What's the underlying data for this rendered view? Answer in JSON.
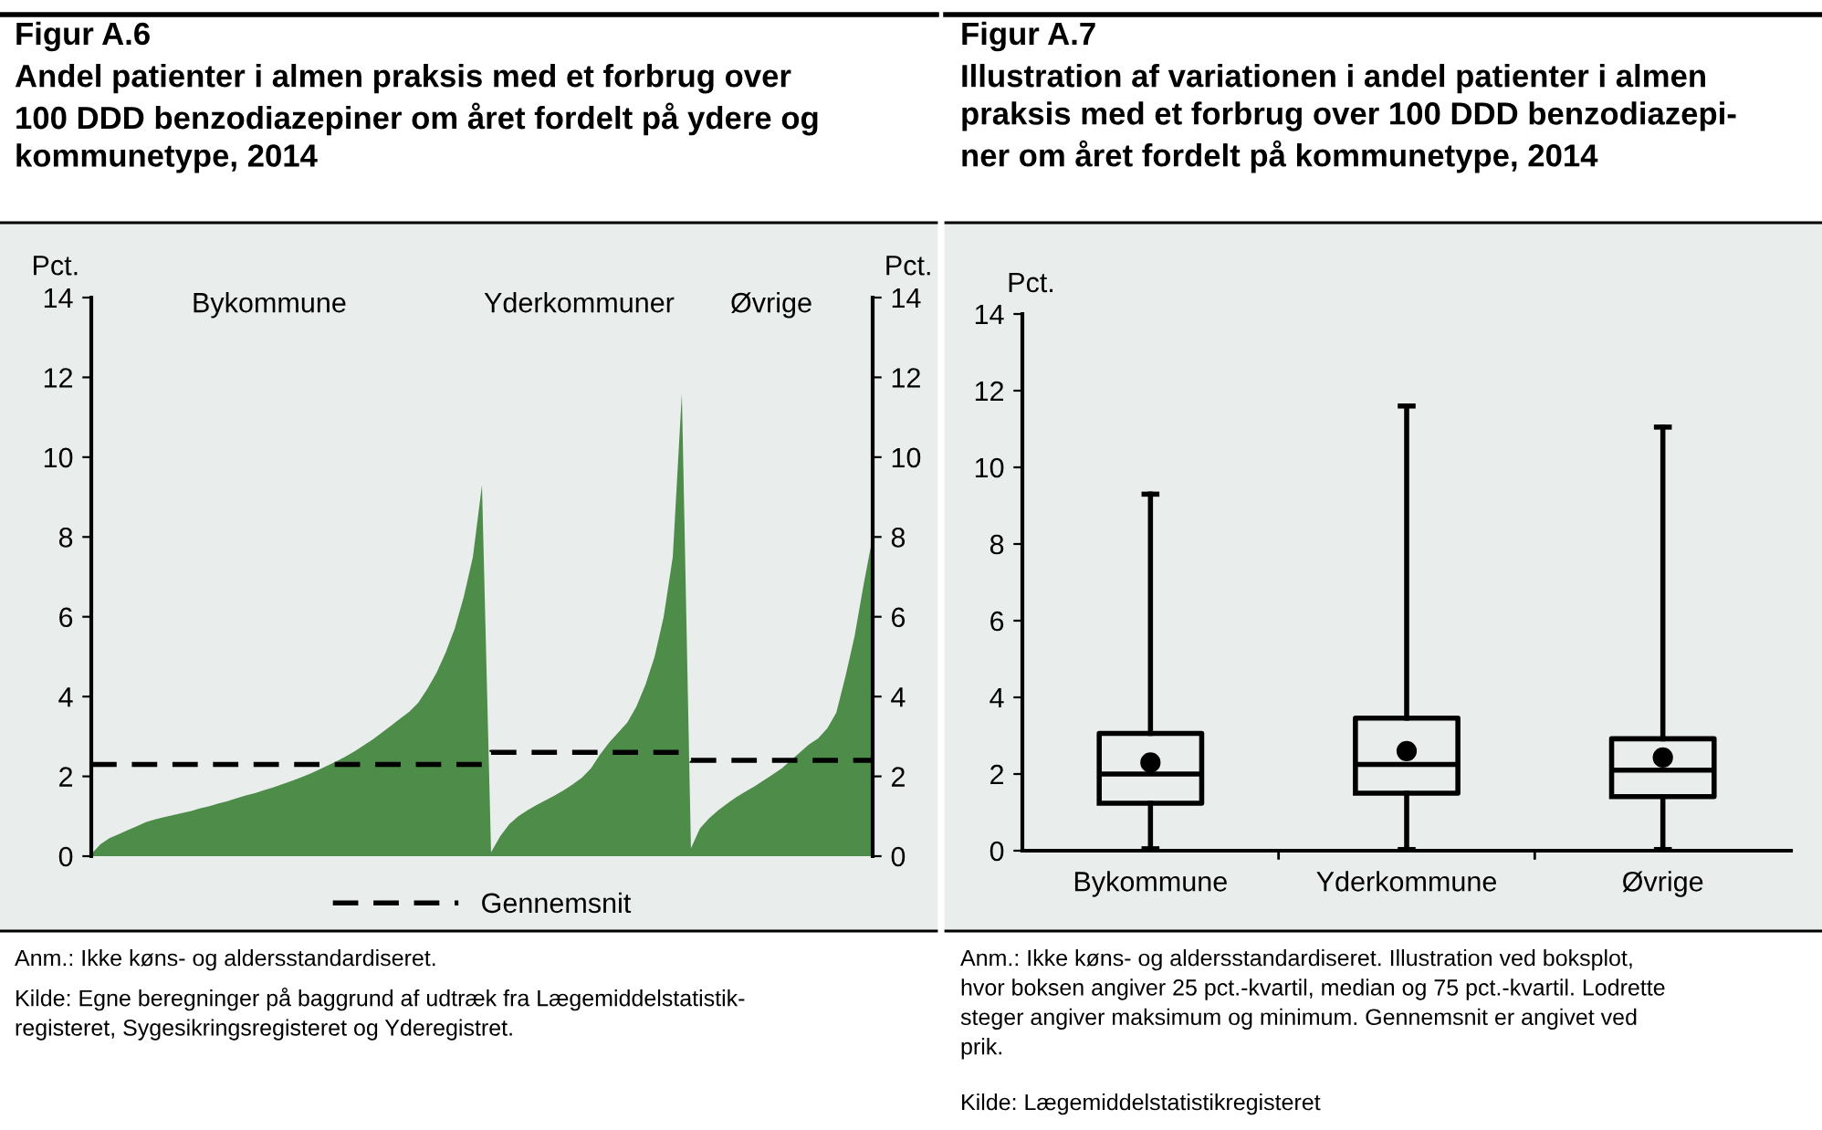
{
  "chart_data": [
    {
      "type": "area",
      "title": "Figur A.6",
      "subtitle": "Andel patienter i almen praksis med et forbrug over\n100 DDD benzodiazepiner om året fordelt på ydere og\nkommunetype, 2014",
      "ylabel": "Pct.",
      "y2label": "Pct.",
      "categories": [
        null,
        null,
        null,
        null,
        null,
        null,
        null,
        null,
        null,
        null,
        null,
        null,
        null,
        null,
        null,
        null,
        null,
        null,
        null,
        null,
        null,
        null,
        null,
        null,
        null,
        null,
        null,
        null,
        null,
        null,
        null,
        null,
        null,
        null,
        null,
        null,
        null,
        null,
        null,
        null,
        null,
        null,
        null,
        null,
        null,
        null,
        null,
        null,
        null,
        null,
        null,
        null,
        null,
        null,
        null,
        null,
        null,
        null,
        null,
        null,
        null,
        null,
        null,
        null,
        null,
        null,
        null,
        null,
        null,
        null,
        null,
        null,
        null,
        null,
        null,
        null,
        null,
        null,
        null,
        null,
        null,
        null,
        null,
        null,
        null,
        null,
        null
      ],
      "series": [
        {
          "color": "#4e8c4a",
          "values": [
            0.05,
            0.3,
            0.45,
            0.55,
            0.65,
            0.75,
            0.85,
            0.92,
            0.98,
            1.03,
            1.08,
            1.13,
            1.2,
            1.25,
            1.32,
            1.38,
            1.45,
            1.52,
            1.58,
            1.65,
            1.72,
            1.8,
            1.88,
            1.97,
            2.06,
            2.16,
            2.27,
            2.38,
            2.5,
            2.63,
            2.78,
            2.93,
            3.1,
            3.27,
            3.45,
            3.62,
            3.85,
            4.2,
            4.6,
            5.1,
            5.7,
            6.5,
            7.5,
            9.3,
            0.1,
            0.5,
            0.8,
            1.0,
            1.15,
            1.28,
            1.4,
            1.52,
            1.65,
            1.8,
            1.97,
            2.2,
            2.55,
            2.85,
            3.1,
            3.35,
            3.75,
            4.3,
            5.0,
            6.0,
            7.5,
            11.6,
            0.2,
            0.7,
            0.95,
            1.15,
            1.32,
            1.48,
            1.62,
            1.75,
            1.9,
            2.05,
            2.2,
            2.4,
            2.6,
            2.8,
            2.95,
            3.2,
            3.6,
            4.5,
            5.5,
            6.8,
            8.0
          ]
        },
        {
          "type": "line",
          "name": "Gennemsnit",
          "color": "#000000",
          "line_style": "dashed",
          "values": [
            2.3,
            2.3,
            2.3,
            2.3,
            2.3,
            2.3,
            2.3,
            2.3,
            2.3,
            2.3,
            2.3,
            2.3,
            2.3,
            2.3,
            2.3,
            2.3,
            2.3,
            2.3,
            2.3,
            2.3,
            2.3,
            2.3,
            2.3,
            2.3,
            2.3,
            2.3,
            2.3,
            2.3,
            2.3,
            2.3,
            2.3,
            2.3,
            2.3,
            2.3,
            2.3,
            2.3,
            2.3,
            2.3,
            2.3,
            2.3,
            2.3,
            2.3,
            2.3,
            2.3,
            2.6,
            2.6,
            2.6,
            2.6,
            2.6,
            2.6,
            2.6,
            2.6,
            2.6,
            2.6,
            2.6,
            2.6,
            2.6,
            2.6,
            2.6,
            2.6,
            2.6,
            2.6,
            2.6,
            2.6,
            2.6,
            2.6,
            2.4,
            2.4,
            2.4,
            2.4,
            2.4,
            2.4,
            2.4,
            2.4,
            2.4,
            2.4,
            2.4,
            2.4,
            2.4,
            2.4,
            2.4,
            2.4,
            2.4,
            2.4,
            2.4,
            2.4,
            2.4
          ]
        }
      ],
      "ylim": [
        0,
        14
      ],
      "yticks": [
        0,
        2,
        4,
        6,
        8,
        10,
        12,
        14
      ],
      "y2lim": [
        0,
        14
      ],
      "y2ticks": [
        0,
        2,
        4,
        6,
        8,
        10,
        12,
        14
      ],
      "legend": "bottom",
      "annotations": [
        "Bykommune",
        "Yderkommuner",
        "Øvrige",
        "Anm.: Ikke køns- og aldersstandardiseret.",
        "Kilde: Egne beregninger på baggrund af udtræk fra Lægemiddelstatistik-\nregisteret, Sygesikringsregisteret og Yderegistret."
      ]
    },
    {
      "type": "box",
      "title": "Figur A.7",
      "subtitle": "Illustration af variationen i andel patienter i almen\npraksis med et forbrug over 100 DDD benzodiazepi-\nner om året fordelt på kommunetype, 2014",
      "ylabel": "Pct.",
      "categories": [
        "Bykommune",
        "Yderkommune",
        "Øvrige"
      ],
      "marker": "circle",
      "boxes": [
        {
          "low": 0.05,
          "q1": 1.24,
          "median": 2.0,
          "q3": 3.06,
          "high": 9.3,
          "mean": 2.3
        },
        {
          "low": 0.03,
          "q1": 1.5,
          "median": 2.25,
          "q3": 3.46,
          "high": 11.6,
          "mean": 2.6
        },
        {
          "low": 0.03,
          "q1": 1.41,
          "median": 2.1,
          "q3": 2.92,
          "high": 11.05,
          "mean": 2.43
        }
      ],
      "ylim": [
        0,
        14
      ],
      "yticks": [
        0,
        2,
        4,
        6,
        8,
        10,
        12,
        14
      ],
      "annotations": [
        "Anm.: Ikke køns- og aldersstandardiseret. Illustration ved boksplot,\nhvor boksen angiver 25 pct.-kvartil, median og 75 pct.-kvartil. Lodrette\nsteger angiver maksimum og minimum. Gennemsnit er angivet ved\nprik.",
        "Kilde: Lægemiddelstatistikregisteret"
      ]
    }
  ]
}
